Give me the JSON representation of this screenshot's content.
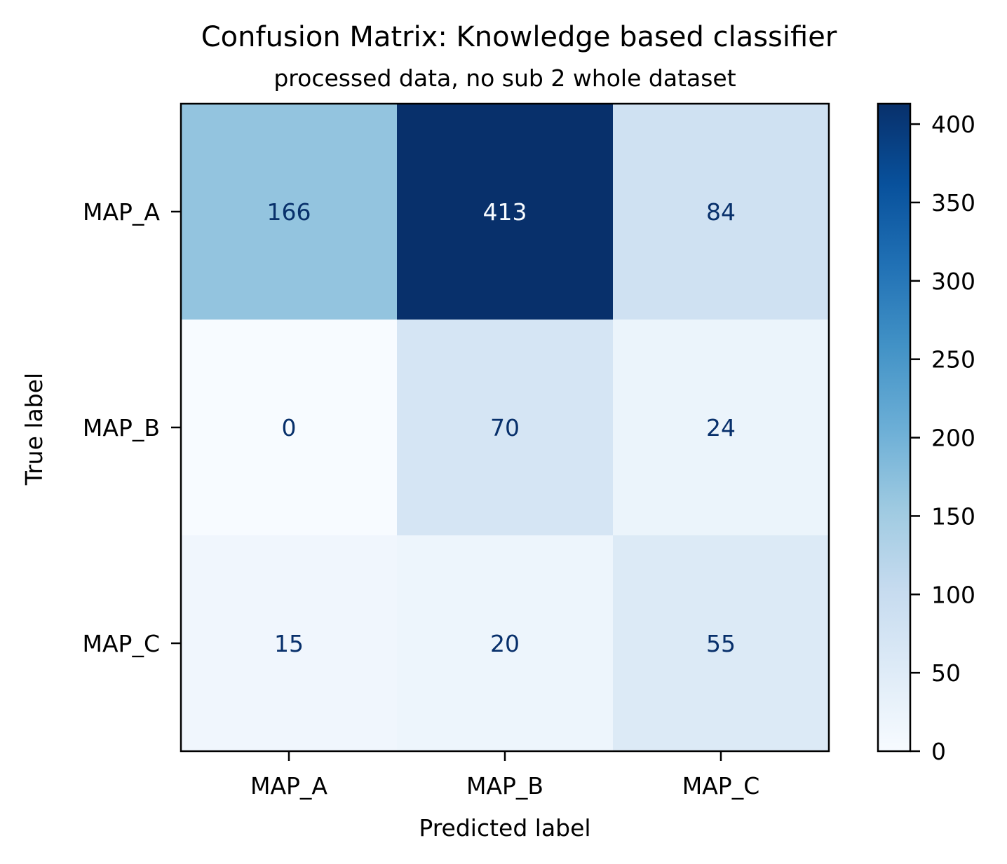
{
  "chart_data": {
    "type": "heatmap",
    "title": "Confusion Matrix: Knowledge based classifier",
    "subtitle": "processed data, no sub 2 whole dataset",
    "xlabel": "Predicted label",
    "ylabel": "True label",
    "x_categories": [
      "MAP_A",
      "MAP_B",
      "MAP_C"
    ],
    "y_categories": [
      "MAP_A",
      "MAP_B",
      "MAP_C"
    ],
    "values": [
      [
        166,
        413,
        84
      ],
      [
        0,
        70,
        24
      ],
      [
        15,
        20,
        55
      ]
    ],
    "colormap": "Blues",
    "colorbar": {
      "min": 0,
      "max": 413,
      "ticks": [
        0,
        50,
        100,
        150,
        200,
        250,
        300,
        350,
        400
      ]
    },
    "text_colors": {
      "light": "#f7fbff",
      "dark": "#08306b"
    },
    "grid": false
  }
}
